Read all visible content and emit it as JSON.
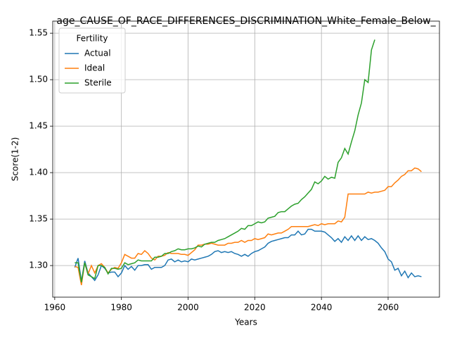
{
  "chart_data": {
    "type": "line",
    "title": "age_CAUSE_OF_RACE_DIFFERENCES_DISCRIMINATION_White_Female_Below_",
    "xlabel": "Years",
    "ylabel": "Score(1-2)",
    "legend_title": "Fertility",
    "legend": "upper left",
    "grid": true,
    "xlim": [
      1959.4,
      2075.4
    ],
    "ylim": [
      1.266,
      1.563
    ],
    "xticks": [
      1960,
      1980,
      2000,
      2020,
      2040,
      2060
    ],
    "yticks": [
      {
        "value": 1.3,
        "label": "1.30"
      },
      {
        "value": 1.35,
        "label": "1.35"
      },
      {
        "value": 1.4,
        "label": "1.40"
      },
      {
        "value": 1.45,
        "label": "1.45"
      },
      {
        "value": 1.5,
        "label": "1.50"
      },
      {
        "value": 1.55,
        "label": "1.55"
      }
    ],
    "x": [
      1966,
      1967,
      1968,
      1969,
      1970,
      1971,
      1972,
      1973,
      1974,
      1975,
      1976,
      1977,
      1978,
      1979,
      1980,
      1981,
      1982,
      1983,
      1984,
      1985,
      1986,
      1987,
      1988,
      1989,
      1990,
      1991,
      1992,
      1993,
      1994,
      1995,
      1996,
      1997,
      1998,
      1999,
      2000,
      2001,
      2002,
      2003,
      2004,
      2005,
      2006,
      2007,
      2008,
      2009,
      2010,
      2011,
      2012,
      2013,
      2014,
      2015,
      2016,
      2017,
      2018,
      2019,
      2020,
      2021,
      2022,
      2023,
      2024,
      2025,
      2026,
      2027,
      2028,
      2029,
      2030,
      2031,
      2032,
      2033,
      2034,
      2035,
      2036,
      2037,
      2038,
      2039,
      2040,
      2041,
      2042,
      2043,
      2044,
      2045,
      2046,
      2047,
      2048,
      2049,
      2050,
      2051,
      2052,
      2053,
      2054,
      2055,
      2056,
      2057,
      2058,
      2059,
      2060,
      2061,
      2062,
      2063,
      2064,
      2065,
      2066,
      2067,
      2068,
      2069,
      2070
    ],
    "series": [
      {
        "name": "Actual",
        "color": "#1f77b4",
        "values": [
          1.298,
          1.308,
          1.283,
          1.305,
          1.292,
          1.288,
          1.284,
          1.29,
          1.3,
          1.297,
          1.292,
          1.293,
          1.293,
          1.288,
          1.292,
          1.3,
          1.296,
          1.299,
          1.295,
          1.3,
          1.3,
          1.301,
          1.301,
          1.296,
          1.298,
          1.298,
          1.298,
          1.3,
          1.306,
          1.307,
          1.304,
          1.306,
          1.304,
          1.305,
          1.304,
          1.307,
          1.306,
          1.307,
          1.308,
          1.309,
          1.31,
          1.312,
          1.315,
          1.316,
          1.314,
          1.315,
          1.314,
          1.315,
          1.313,
          1.312,
          1.31,
          1.312,
          1.31,
          1.313,
          1.315,
          1.316,
          1.318,
          1.32,
          1.324,
          1.326,
          1.327,
          1.328,
          1.329,
          1.33,
          1.33,
          1.333,
          1.333,
          1.337,
          1.333,
          1.334,
          1.339,
          1.339,
          1.337,
          1.337,
          1.337,
          1.336,
          1.333,
          1.33,
          1.326,
          1.329,
          1.325,
          1.331,
          1.327,
          1.332,
          1.327,
          1.332,
          1.327,
          1.331,
          1.328,
          1.329,
          1.327,
          1.324,
          1.319,
          1.315,
          1.307,
          1.304,
          1.295,
          1.297,
          1.289,
          1.294,
          1.287,
          1.292,
          1.288,
          1.289,
          1.288
        ]
      },
      {
        "name": "Ideal",
        "color": "#ff7f0e",
        "values": [
          1.299,
          1.298,
          1.279,
          1.303,
          1.291,
          1.3,
          1.292,
          1.3,
          1.302,
          1.298,
          1.292,
          1.296,
          1.298,
          1.297,
          1.303,
          1.312,
          1.31,
          1.308,
          1.308,
          1.313,
          1.312,
          1.316,
          1.313,
          1.308,
          1.306,
          1.31,
          1.31,
          1.311,
          1.314,
          1.313,
          1.313,
          1.313,
          1.312,
          1.312,
          1.311,
          1.314,
          1.317,
          1.322,
          1.322,
          1.323,
          1.323,
          1.324,
          1.323,
          1.322,
          1.322,
          1.322,
          1.324,
          1.324,
          1.325,
          1.325,
          1.327,
          1.325,
          1.327,
          1.327,
          1.329,
          1.328,
          1.329,
          1.33,
          1.334,
          1.333,
          1.334,
          1.335,
          1.335,
          1.337,
          1.339,
          1.342,
          1.342,
          1.342,
          1.342,
          1.342,
          1.342,
          1.343,
          1.344,
          1.343,
          1.345,
          1.344,
          1.345,
          1.345,
          1.345,
          1.348,
          1.347,
          1.352,
          1.377,
          1.377,
          1.377,
          1.377,
          1.377,
          1.377,
          1.379,
          1.378,
          1.379,
          1.379,
          1.38,
          1.381,
          1.385,
          1.385,
          1.389,
          1.392,
          1.396,
          1.398,
          1.402,
          1.402,
          1.405,
          1.404,
          1.401
        ]
      },
      {
        "name": "Sterile",
        "color": "#2ca02c",
        "values": [
          1.303,
          1.303,
          1.282,
          1.303,
          1.29,
          1.288,
          1.286,
          1.3,
          1.3,
          1.298,
          1.291,
          1.297,
          1.297,
          1.296,
          1.297,
          1.303,
          1.301,
          1.302,
          1.303,
          1.306,
          1.305,
          1.305,
          1.305,
          1.305,
          1.309,
          1.309,
          1.31,
          1.313,
          1.313,
          1.315,
          1.316,
          1.318,
          1.317,
          1.317,
          1.318,
          1.318,
          1.319,
          1.321,
          1.32,
          1.323,
          1.324,
          1.325,
          1.325,
          1.327,
          1.328,
          1.329,
          1.331,
          1.333,
          1.335,
          1.337,
          1.34,
          1.339,
          1.343,
          1.343,
          1.345,
          1.347,
          1.346,
          1.347,
          1.351,
          1.352,
          1.353,
          1.357,
          1.358,
          1.358,
          1.361,
          1.364,
          1.366,
          1.367,
          1.371,
          1.374,
          1.378,
          1.382,
          1.39,
          1.388,
          1.391,
          1.396,
          1.393,
          1.395,
          1.394,
          1.411,
          1.416,
          1.426,
          1.42,
          1.433,
          1.445,
          1.462,
          1.475,
          1.5,
          1.497,
          1.532,
          1.543,
          null,
          null,
          null,
          null,
          null,
          null,
          null,
          null,
          null,
          null,
          null,
          null,
          null,
          null
        ]
      }
    ]
  }
}
